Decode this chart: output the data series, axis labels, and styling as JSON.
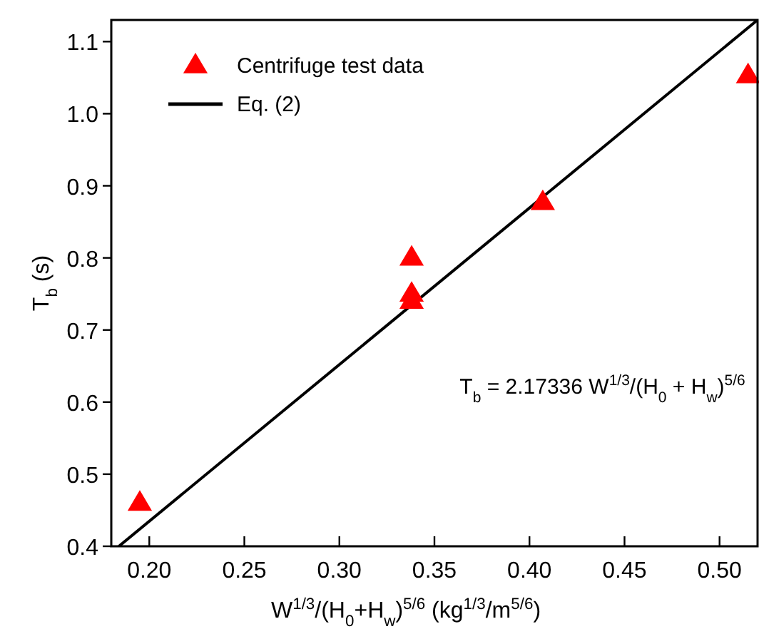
{
  "chart_data": {
    "type": "scatter",
    "xlabel": "W$^{1/3}$/(H$_{0}$+H$_{w}$)$^{5/6}$ (kg$^{1/3}$/m$^{5/6}$)",
    "ylabel": "T$_{b}$ (s)",
    "xlim": [
      0.18,
      0.52
    ],
    "xticks": [
      {
        "value": 0.2,
        "label": "0.20"
      },
      {
        "value": 0.25,
        "label": "0.25"
      },
      {
        "value": 0.3,
        "label": "0.30"
      },
      {
        "value": 0.35,
        "label": "0.35"
      },
      {
        "value": 0.4,
        "label": "0.40"
      },
      {
        "value": 0.45,
        "label": "0.45"
      },
      {
        "value": 0.5,
        "label": "0.50"
      }
    ],
    "ylim": [
      0.4,
      1.13
    ],
    "yticks": [
      0.4,
      0.5,
      0.6,
      0.7,
      0.8,
      0.9,
      {
        "value": 1,
        "label": "1.0"
      },
      1.1
    ],
    "series": [
      {
        "name": "Centrifuge test data",
        "color": "#ff0000",
        "marker": "triangle",
        "x": [
          0.195,
          0.338,
          0.338,
          0.338,
          0.407,
          0.515
        ],
        "values": [
          0.46,
          0.8,
          0.75,
          0.74,
          0.877,
          1.053
        ]
      },
      {
        "name": "Eq. (2)",
        "type": "line",
        "color": "#000000",
        "marker": "none",
        "line_style": "solid",
        "x": [
          0.184,
          0.52
        ],
        "values": [
          0.4,
          1.13
        ]
      }
    ],
    "annotations": [
      "T$_{b}$ = 2.17336 W$^{1/3}$/(H$_{0}$ + H$_{w}$)$^{5/6}$"
    ],
    "legend": "top left",
    "grid": false
  }
}
